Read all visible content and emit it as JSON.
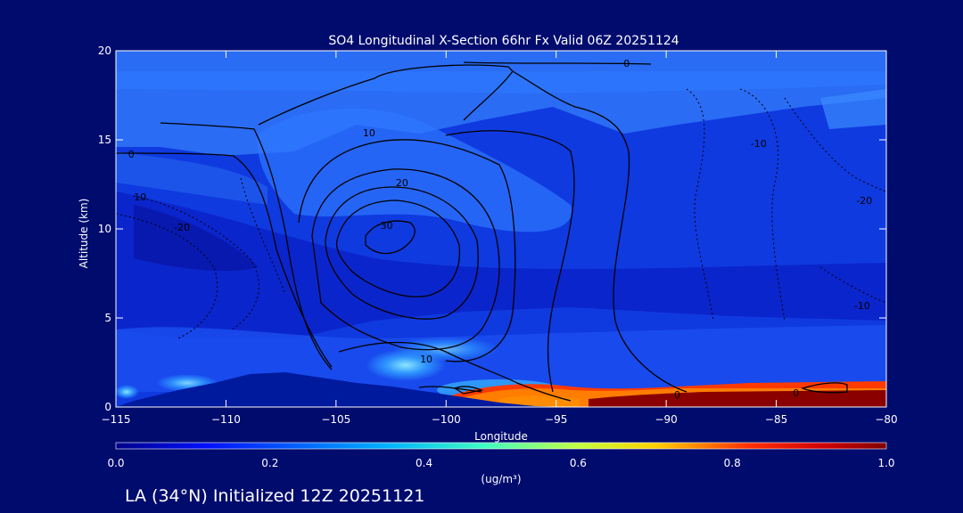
{
  "chart_data": {
    "type": "heatmap",
    "title": "SO4 Longitudinal X-Section 66hr  Fx Valid 06Z 20251124",
    "subtitle": "LA (34°N) Initialized 12Z 20251121",
    "xlabel": "Longitude",
    "ylabel": "Altitude (km)",
    "xlim": [
      -115,
      -80
    ],
    "ylim": [
      0,
      20
    ],
    "xticks": [
      "−115",
      "−110",
      "−105",
      "−100",
      "−95",
      "−90",
      "−85",
      "−80"
    ],
    "yticks": [
      "0",
      "5",
      "10",
      "15",
      "20"
    ],
    "colorbar": {
      "label": "(ug/m³)",
      "range": [
        0.0,
        1.0
      ],
      "ticks": [
        "0.0",
        "0.2",
        "0.4",
        "0.6",
        "0.8",
        "1.0"
      ]
    },
    "contour_labels": [
      {
        "text": "0",
        "lon": -114.3,
        "alt": 14.2
      },
      {
        "text": "10",
        "lon": -113.9,
        "alt": 11.8
      },
      {
        "text": "10",
        "lon": -103.5,
        "alt": 15.4
      },
      {
        "text": "20",
        "lon": -102.0,
        "alt": 12.6
      },
      {
        "text": "30",
        "lon": -102.7,
        "alt": 10.2
      },
      {
        "text": "10",
        "lon": -100.9,
        "alt": 2.7
      },
      {
        "text": "0",
        "lon": -89.5,
        "alt": 0.7
      },
      {
        "text": "0",
        "lon": -84.1,
        "alt": 0.8
      },
      {
        "text": "0",
        "lon": -91.8,
        "alt": 19.3
      },
      {
        "text": "-10",
        "lon": -85.8,
        "alt": 14.8
      },
      {
        "text": "-20",
        "lon": -112.0,
        "alt": 10.1
      },
      {
        "text": "-20",
        "lon": -81.0,
        "alt": 11.6
      },
      {
        "text": "-10",
        "lon": -81.1,
        "alt": 5.7
      }
    ]
  },
  "colors": {
    "background": "#000b6e",
    "field_low": "#0a2fd8",
    "field_mid": "#2a74ff",
    "field_high": "#800000",
    "terrain": "#001a9e"
  }
}
